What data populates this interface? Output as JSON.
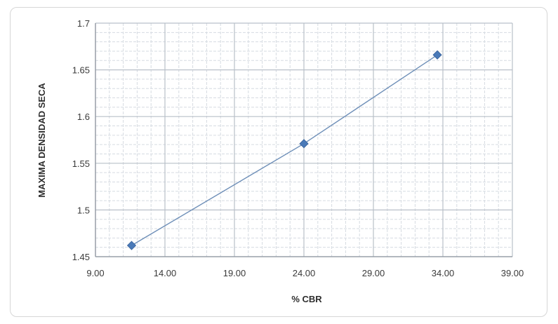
{
  "chart_data": {
    "type": "scatter",
    "title": "",
    "xlabel": "% CBR",
    "ylabel": "MAXIMA DENSIDAD SECA",
    "xlim": [
      9.0,
      39.0
    ],
    "ylim": [
      1.45,
      1.7
    ],
    "x_ticks": [
      "9.00",
      "14.00",
      "19.00",
      "24.00",
      "29.00",
      "34.00",
      "39.00"
    ],
    "y_ticks": [
      "1.45",
      "1.5",
      "1.55",
      "1.6",
      "1.65",
      "1.7"
    ],
    "grid": true,
    "legend": "none",
    "series": [
      {
        "points": [
          {
            "x": 11.6,
            "y": 1.462
          },
          {
            "x": 24.0,
            "y": 1.571
          },
          {
            "x": 33.6,
            "y": 1.666
          }
        ],
        "marker": "diamond",
        "line": true,
        "color": "#4a7ab8",
        "line_color": "#6e8fb8"
      }
    ],
    "grid_color_major": "#b9c0c9",
    "grid_color_minor": "#d6dbe2"
  }
}
